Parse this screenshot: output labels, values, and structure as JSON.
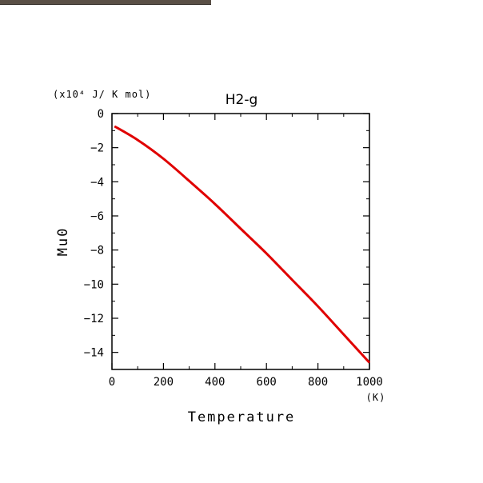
{
  "chart_data": {
    "type": "line",
    "title": "H2-g",
    "xlabel": "Temperature",
    "ylabel": "Mu0",
    "x_unit": "(K)",
    "y_unit": "(x10⁴ J/ K mol)",
    "xlim": [
      0,
      1000
    ],
    "ylim": [
      -15,
      0
    ],
    "x_ticks": [
      0,
      200,
      400,
      600,
      800,
      1000
    ],
    "y_ticks": [
      0,
      -2,
      -4,
      -6,
      -8,
      -10,
      -12,
      -14
    ],
    "grid": false,
    "series": [
      {
        "color": "#e00000",
        "x": [
          10,
          100,
          200,
          300,
          400,
          500,
          600,
          700,
          800,
          900,
          1000
        ],
        "y": [
          -0.75,
          -1.55,
          -2.65,
          -3.95,
          -5.3,
          -6.75,
          -8.2,
          -9.75,
          -11.3,
          -12.95,
          -14.6
        ]
      }
    ]
  }
}
